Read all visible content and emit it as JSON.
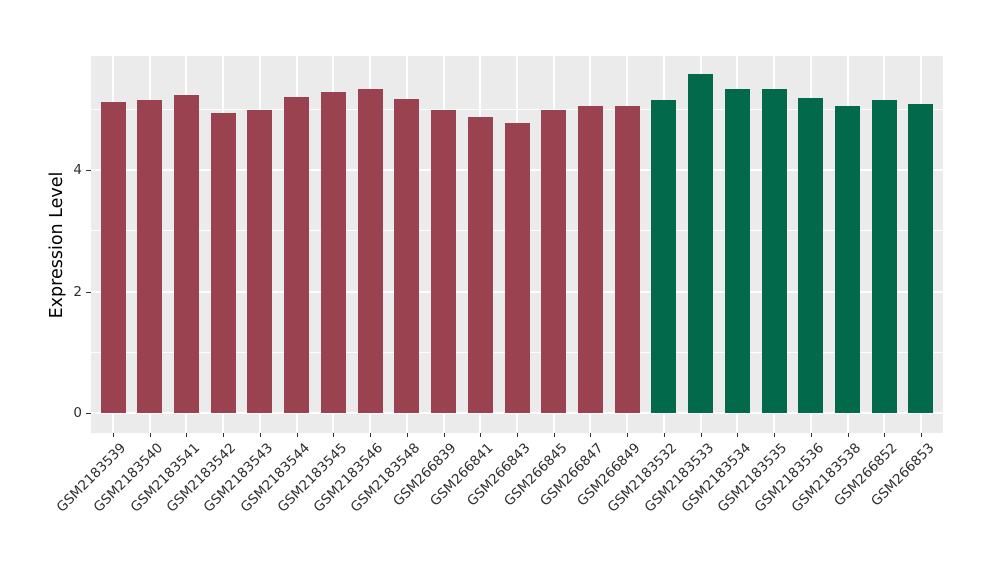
{
  "chart_data": {
    "type": "bar",
    "title": "",
    "xlabel": "",
    "ylabel": "Expression Level",
    "yticks": [
      0,
      2,
      4
    ],
    "yticks_minor": [
      1,
      3,
      5
    ],
    "ylim": [
      0,
      5.87
    ],
    "grid": "on",
    "legend": "none",
    "panel_background": "#EBEBEB",
    "grid_color": "#FFFFFF",
    "tick_color": "#333333",
    "group_colors": [
      "#9B4251",
      "#02694A"
    ],
    "categories": [
      "GSM2183539",
      "GSM2183540",
      "GSM2183541",
      "GSM2183542",
      "GSM2183543",
      "GSM2183544",
      "GSM2183545",
      "GSM2183546",
      "GSM2183548",
      "GSM266839",
      "GSM266841",
      "GSM266843",
      "GSM266845",
      "GSM266847",
      "GSM266849",
      "GSM2183532",
      "GSM2183533",
      "GSM2183534",
      "GSM2183535",
      "GSM2183536",
      "GSM2183538",
      "GSM266852",
      "GSM266853"
    ],
    "values": [
      5.12,
      5.16,
      5.24,
      4.95,
      4.99,
      5.21,
      5.29,
      5.33,
      5.17,
      4.99,
      4.87,
      4.78,
      5.0,
      5.06,
      5.06,
      5.16,
      5.59,
      5.33,
      5.33,
      5.19,
      5.06,
      5.16,
      5.09
    ],
    "bar_group": [
      0,
      0,
      0,
      0,
      0,
      0,
      0,
      0,
      0,
      0,
      0,
      0,
      0,
      0,
      0,
      1,
      1,
      1,
      1,
      1,
      1,
      1,
      1
    ]
  }
}
